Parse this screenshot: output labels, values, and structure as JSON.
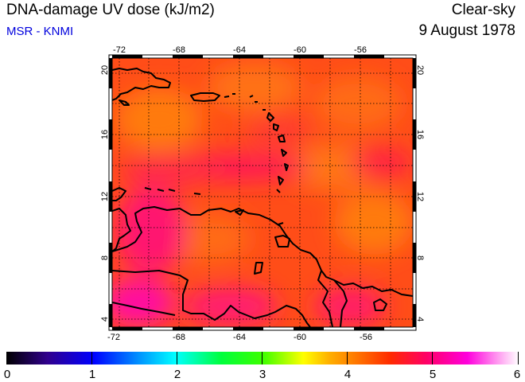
{
  "header": {
    "title": "DNA-damage UV dose (kJ/m2)",
    "credit": "MSR - KNMI",
    "condition": "Clear-sky",
    "date": "9 August 1978"
  },
  "map": {
    "lon_ticks": [
      "-72",
      "-68",
      "-64",
      "-60",
      "-56"
    ],
    "lat_ticks": [
      "4",
      "8",
      "12",
      "16",
      "20"
    ],
    "grid_style": "dotted",
    "background_color": "#ff4a1a"
  },
  "colorbar": {
    "tick_labels": [
      "0",
      "1",
      "2",
      "3",
      "4",
      "5",
      "6"
    ]
  }
}
